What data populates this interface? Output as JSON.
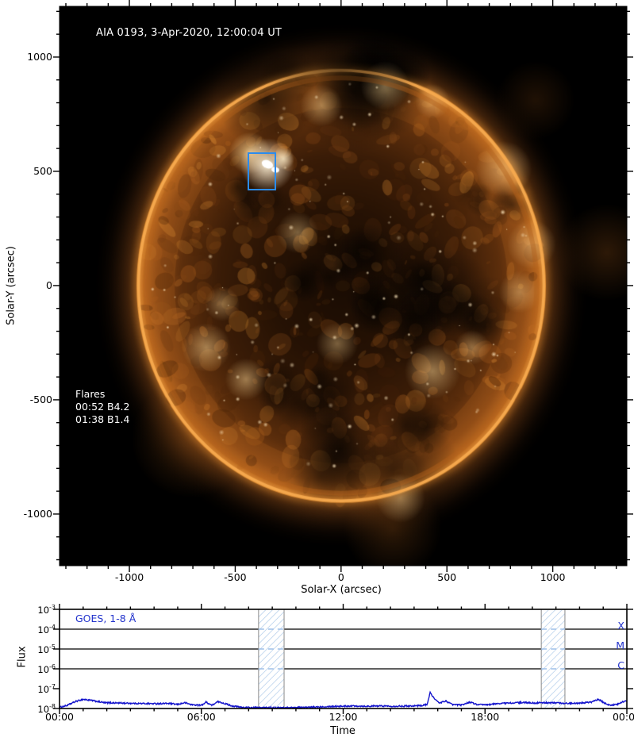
{
  "figure": {
    "background": "#ffffff",
    "main_plot": {
      "title": "AIA 0193, 3-Apr-2020, 12:00:04 UT",
      "xlabel": "Solar-X (arcsec)",
      "ylabel": "Solar-Y (arcsec)",
      "background": "#000000",
      "flares_label": "Flares",
      "flares": [
        "00:52 B4.2",
        "01:38 B1.4"
      ],
      "fov_box_color": "#2b8cee",
      "fov_box_arcsec": {
        "x_min": -442,
        "x_max": -307,
        "y_min": 417,
        "y_max": 583
      },
      "colormap": {
        "dark": "#140a02",
        "mid": "#8a4a16",
        "bright": "#e8983c",
        "peak": "#fff3d8"
      }
    },
    "goes_plot": {
      "label": "GOES, 1-8 Å",
      "xlabel": "Time",
      "ylabel": "Flux",
      "label_color": "#2233cc",
      "curve_color": "#1414cc",
      "hatch_color": "#a9c7e8",
      "band_border_color": "#8a8a8a",
      "class_labels": [
        {
          "label": "X",
          "flux": 0.0001
        },
        {
          "label": "M",
          "flux": 1e-05
        },
        {
          "label": "C",
          "flux": 1e-06
        }
      ]
    }
  },
  "chart_data": [
    {
      "type": "heatmap",
      "name": "aia_0193_full_disk_image",
      "title": "AIA 0193, 3-Apr-2020, 12:00:04 UT",
      "xlabel": "Solar-X (arcsec)",
      "ylabel": "Solar-Y (arcsec)",
      "xlim": [
        -1330,
        1350
      ],
      "ylim": [
        -1226,
        1222
      ],
      "x_ticks": [
        -1000,
        -500,
        0,
        500,
        1000
      ],
      "y_ticks": [
        1000,
        500,
        0,
        -500,
        -1000
      ],
      "minor_tick_step": 100,
      "annotations": {
        "flares_title": "Flares",
        "flares": [
          "00:52 B4.2",
          "01:38 B1.4"
        ],
        "fov_box_arcsec": {
          "x_min": -442,
          "x_max": -307,
          "y_min": 417,
          "y_max": 583
        }
      },
      "description": "SDO/AIA 193 A full-disk solar image, gold/orange colormap on black; bright active region inside blue box near (-375, 500) arcsec; dark coronal holes across disk center, north pole and south; bright limb ring with faint corona glow"
    },
    {
      "type": "line",
      "name": "goes_xray_flux",
      "xlabel": "Time",
      "ylabel": "Flux",
      "x_tick_hours": [
        0,
        6,
        12,
        18,
        24
      ],
      "x_tick_labels": [
        "00:00",
        "06:00",
        "12:00",
        "18:00",
        "00:00"
      ],
      "minor_tick_step_hours": 1,
      "y_scale": "log",
      "y_tick_exponents": [
        -3,
        -4,
        -5,
        -6,
        -7,
        -8
      ],
      "ylim": [
        1e-08,
        0.001
      ],
      "xlim_hours": [
        0,
        24
      ],
      "thresholds": [
        {
          "label": "X",
          "flux": 0.0001
        },
        {
          "label": "M",
          "flux": 1e-05
        },
        {
          "label": "C",
          "flux": 1e-06
        }
      ],
      "shaded_bands_hours": [
        [
          8.42,
          9.5
        ],
        [
          20.38,
          21.38
        ]
      ],
      "legend": [
        "GOES, 1-8 Å"
      ],
      "series": [
        {
          "name": "GOES, 1-8 Å",
          "x_hours": [
            0,
            0.3,
            0.7,
            1.0,
            1.4,
            1.9,
            2.5,
            3.2,
            4.0,
            4.6,
            5.0,
            5.3,
            5.6,
            6.0,
            6.2,
            6.45,
            6.7,
            6.95,
            7.3,
            7.7,
            8.2,
            8.8,
            9.4,
            10.0,
            10.6,
            11.2,
            11.8,
            12.4,
            13.0,
            13.6,
            14.2,
            14.8,
            15.3,
            15.55,
            15.68,
            15.85,
            16.05,
            16.35,
            16.6,
            17.0,
            17.35,
            17.7,
            18.1,
            18.6,
            19.1,
            19.6,
            20.1,
            20.6,
            21.1,
            21.6,
            22.1,
            22.5,
            22.8,
            23.05,
            23.3,
            23.6,
            23.85,
            24.0
          ],
          "flux_1e8": [
            1.15,
            1.4,
            2.3,
            2.9,
            2.5,
            1.95,
            1.9,
            1.8,
            1.75,
            1.8,
            1.6,
            1.95,
            1.55,
            1.45,
            2.1,
            1.45,
            2.2,
            1.85,
            1.35,
            1.15,
            1.1,
            1.12,
            1.1,
            1.12,
            1.15,
            1.25,
            1.3,
            1.35,
            1.3,
            1.35,
            1.3,
            1.35,
            1.4,
            1.6,
            6.5,
            3.2,
            1.9,
            2.4,
            1.6,
            1.5,
            2.1,
            1.55,
            1.55,
            1.8,
            1.9,
            2.0,
            1.9,
            1.95,
            1.9,
            1.8,
            1.95,
            2.1,
            2.9,
            1.9,
            1.45,
            1.6,
            2.2,
            2.4
          ]
        }
      ]
    }
  ]
}
